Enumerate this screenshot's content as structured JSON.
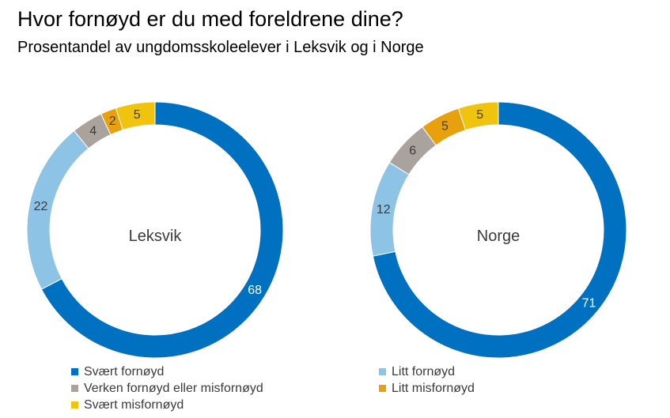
{
  "title": "Hvor fornøyd er du med foreldrene dine?",
  "subtitle": "Prosentandel av ungdomsskoleelever i Leksvik og i Norge",
  "chart_data": [
    {
      "type": "donut",
      "name": "Leksvik",
      "center_label": "Leksvik",
      "categories": [
        "Svært fornøyd",
        "Litt fornøyd",
        "Verken fornøyd eller misfornøyd",
        "Litt misfornøyd",
        "Svært misfornøyd"
      ],
      "values": [
        68,
        22,
        4,
        2,
        5
      ],
      "unit": "%"
    },
    {
      "type": "donut",
      "name": "Norge",
      "center_label": "Norge",
      "categories": [
        "Svært fornøyd",
        "Litt fornøyd",
        "Verken fornøyd eller misfornøyd",
        "Litt misfornøyd",
        "Svært misfornøyd"
      ],
      "values": [
        71,
        12,
        6,
        5,
        5
      ],
      "unit": "%"
    }
  ],
  "legend": [
    {
      "label": "Svært fornøyd",
      "color": "#0070C0"
    },
    {
      "label": "Litt fornøyd",
      "color": "#8DC3E5"
    },
    {
      "label": "Verken fornøyd eller misfornøyd",
      "color": "#AAA39D"
    },
    {
      "label": "Litt misfornøyd",
      "color": "#E8A10C"
    },
    {
      "label": "Svært misfornøyd",
      "color": "#F0C30F"
    }
  ],
  "label_colors": {
    "light": "#ffffff",
    "dark": "#3a3a3a"
  }
}
